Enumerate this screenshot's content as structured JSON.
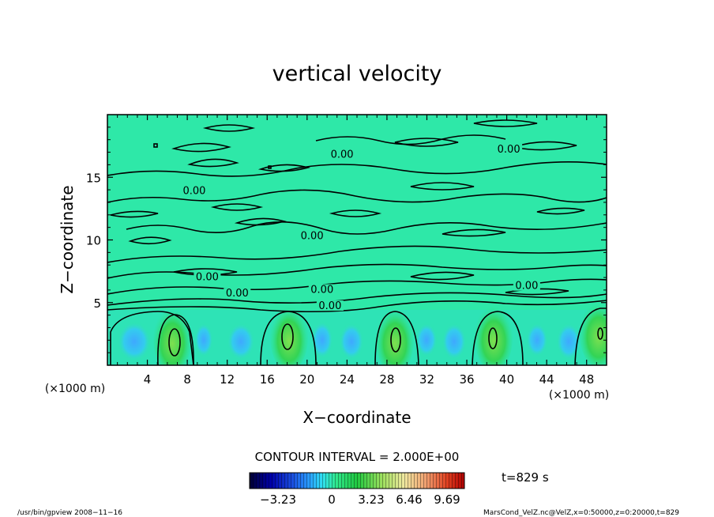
{
  "chart_data": {
    "type": "heatmap",
    "title": "vertical velocity",
    "xlabel": "X−coordinate",
    "ylabel": "Z−coordinate",
    "x_unit": "(×1000 m)",
    "z_unit": "(×1000 m)",
    "xlim": [
      0,
      50
    ],
    "ylim": [
      0,
      20
    ],
    "x_ticks": [
      4,
      8,
      12,
      16,
      20,
      24,
      28,
      32,
      36,
      40,
      44,
      48
    ],
    "y_ticks": [
      5,
      10,
      15
    ],
    "contour_interval": "CONTOUR INTERVAL = 2.000E+00",
    "contour_labels": [
      {
        "x": 23.5,
        "z": 16.7,
        "text": "0.00"
      },
      {
        "x": 40.2,
        "z": 17.1,
        "text": "0.00"
      },
      {
        "x": 8.7,
        "z": 13.8,
        "text": "0.00"
      },
      {
        "x": 20.5,
        "z": 10.2,
        "text": "0.00"
      },
      {
        "x": 10.0,
        "z": 6.9,
        "text": "0.00"
      },
      {
        "x": 13.0,
        "z": 5.6,
        "text": "0.00"
      },
      {
        "x": 21.5,
        "z": 5.9,
        "text": "0.00"
      },
      {
        "x": 22.3,
        "z": 4.6,
        "text": "0.00"
      },
      {
        "x": 42.0,
        "z": 6.2,
        "text": "0.00"
      }
    ],
    "updraft_cores": [
      {
        "x": 6.5,
        "z": 2.0
      },
      {
        "x": 18.2,
        "z": 2.2
      },
      {
        "x": 28.8,
        "z": 2.0
      },
      {
        "x": 38.7,
        "z": 2.2
      },
      {
        "x": 49.2,
        "z": 2.5
      }
    ],
    "colorbar": {
      "ticks": [
        "−3.23",
        "0",
        "3.23",
        "6.46",
        "9.69"
      ],
      "colors": [
        "#000033",
        "#0000aa",
        "#1a4fe0",
        "#2aa0ff",
        "#30e0f0",
        "#30e890",
        "#20c840",
        "#a0e060",
        "#f0e8a0",
        "#f0a070",
        "#e04020",
        "#b00000"
      ]
    },
    "time_label": "t=829 s",
    "footer_left": "/usr/bin/gpview   2008−11−16",
    "footer_right": "MarsCond_VelZ.nc@VelZ,x=0:50000,z=0:20000,t=829"
  }
}
